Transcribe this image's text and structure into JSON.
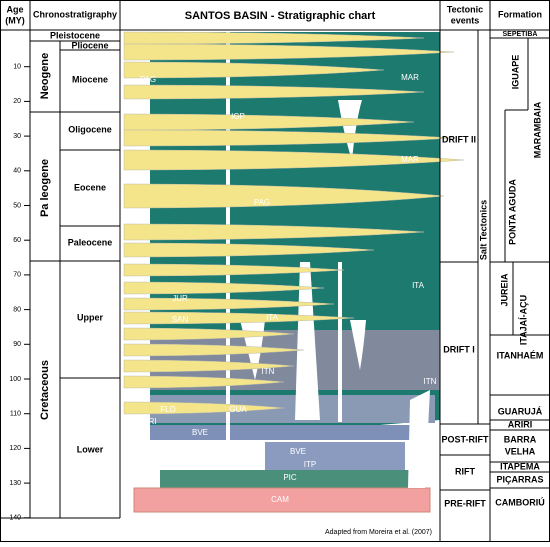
{
  "header": {
    "age": [
      "Age",
      "(MY)"
    ],
    "chrono": "Chronostratigraphy",
    "title": "SANTOS BASIN - Stratigraphic chart",
    "tectonic": [
      "Tectonic",
      "events"
    ],
    "formation": "Formation"
  },
  "age_ticks": [
    10,
    20,
    30,
    40,
    50,
    60,
    70,
    80,
    90,
    100,
    110,
    120,
    130,
    140
  ],
  "periods": [
    "Neogene",
    "Pa leogene",
    "Cretaceous"
  ],
  "epochs": [
    "Pleistocene",
    "Pliocene",
    "Miocene",
    "Oligocene",
    "Eocene",
    "Paleocene",
    "Upper",
    "Lower"
  ],
  "tectonic_events": [
    "DRIFT II",
    "DRIFT I",
    "POST-RIFT",
    "RIFT",
    "PRE-RIFT"
  ],
  "salt": "Salt Tectonics",
  "formations": [
    "SEPETIBA",
    "IGUAPE",
    "MARAMBAIA",
    "PONTA AGUDA",
    "JUREIA",
    "ITAJAÍ-AÇU",
    "ITANHAÉM",
    "GUARUJÁ",
    "ARIRI",
    [
      "BARRA",
      "VELHA"
    ],
    "ITAPEMA",
    "PIÇARRAS",
    "CAMBORIÚ"
  ],
  "chart_labels": [
    "PAG",
    "MAR",
    "IGP",
    "MAR",
    "PAG",
    "ITA",
    "JUR",
    "SAN",
    "ITA",
    "ITN",
    "ITN",
    "FLO",
    "ARI",
    "GUA",
    "BVE",
    "BVE",
    "ITP",
    "PIC",
    "CAM"
  ],
  "credit": "Adapted from Moreira et al. (2007)"
}
